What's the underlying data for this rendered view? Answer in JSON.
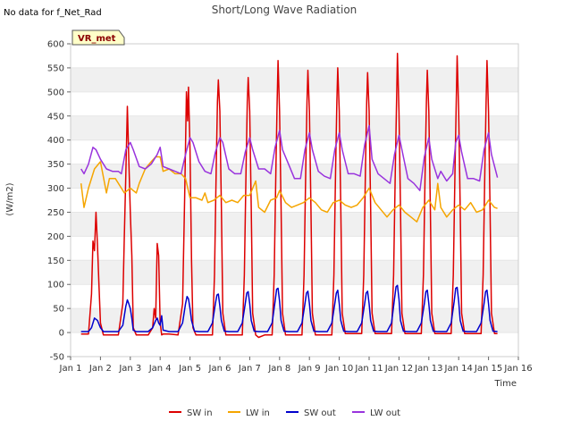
{
  "chart_data": {
    "type": "line",
    "title": "Short/Long Wave Radiation",
    "note": "No data for f_Net_Rad",
    "badge": "VR_met",
    "xlabel": "Time",
    "ylabel": "(W/m2)",
    "xlim": [
      1,
      16
    ],
    "ylim": [
      -50,
      600
    ],
    "x_ticks": [
      1,
      2,
      3,
      4,
      5,
      6,
      7,
      8,
      9,
      10,
      11,
      12,
      13,
      14,
      15,
      16
    ],
    "x_tick_labels": [
      "Jan 1",
      "Jan 2",
      "Jan 3",
      "Jan 4",
      "Jan 5",
      "Jan 6",
      "Jan 7",
      "Jan 8",
      "Jan 9",
      "Jan 10",
      "Jan 11",
      "Jan 12",
      "Jan 13",
      "Jan 14",
      "Jan 15",
      "Jan 16"
    ],
    "y_ticks": [
      -50,
      0,
      50,
      100,
      150,
      200,
      250,
      300,
      350,
      400,
      450,
      500,
      550,
      600
    ],
    "y_tick_labels": [
      "-50",
      "0",
      "50",
      "100",
      "150",
      "200",
      "250",
      "300",
      "350",
      "400",
      "450",
      "500",
      "550",
      "600"
    ],
    "grid": "horizontal bands",
    "legend_position": "bottom",
    "series": [
      {
        "name": "SW in",
        "color": "#dd0000",
        "x": [
          1.35,
          1.6,
          1.7,
          1.75,
          1.8,
          1.85,
          1.9,
          1.95,
          2.0,
          2.1,
          2.3,
          2.6,
          2.75,
          2.8,
          2.85,
          2.9,
          2.95,
          3.0,
          3.05,
          3.1,
          3.2,
          3.3,
          3.6,
          3.75,
          3.8,
          3.85,
          3.9,
          3.95,
          4.0,
          4.05,
          4.1,
          4.2,
          4.3,
          4.6,
          4.75,
          4.82,
          4.88,
          4.92,
          4.95,
          5.0,
          5.05,
          5.1,
          5.2,
          5.3,
          5.5,
          5.75,
          5.82,
          5.88,
          5.92,
          5.95,
          6.0,
          6.05,
          6.1,
          6.2,
          6.3,
          6.5,
          6.75,
          6.82,
          6.88,
          6.92,
          6.95,
          7.0,
          7.05,
          7.1,
          7.2,
          7.3,
          7.5,
          7.75,
          7.82,
          7.88,
          7.92,
          7.95,
          8.0,
          8.05,
          8.1,
          8.2,
          8.3,
          8.5,
          8.75,
          8.82,
          8.88,
          8.92,
          8.95,
          9.0,
          9.05,
          9.1,
          9.2,
          9.3,
          9.5,
          9.75,
          9.82,
          9.88,
          9.92,
          9.95,
          10.0,
          10.05,
          10.1,
          10.2,
          10.3,
          10.5,
          10.75,
          10.82,
          10.88,
          10.92,
          10.95,
          11.0,
          11.05,
          11.1,
          11.2,
          11.3,
          11.5,
          11.75,
          11.82,
          11.88,
          11.92,
          11.95,
          12.0,
          12.05,
          12.1,
          12.2,
          12.3,
          12.5,
          12.75,
          12.82,
          12.88,
          12.92,
          12.95,
          13.0,
          13.05,
          13.1,
          13.2,
          13.3,
          13.5,
          13.75,
          13.82,
          13.88,
          13.92,
          13.95,
          14.0,
          14.05,
          14.1,
          14.2,
          14.3,
          14.5,
          14.75,
          14.82,
          14.88,
          14.92,
          14.95,
          15.0,
          15.05,
          15.1,
          15.2,
          15.3
        ],
        "y": [
          -3,
          -3,
          80,
          190,
          170,
          250,
          180,
          100,
          20,
          -5,
          -5,
          -5,
          60,
          200,
          330,
          470,
          360,
          250,
          160,
          10,
          -5,
          -5,
          -5,
          10,
          50,
          30,
          185,
          160,
          20,
          -5,
          -3,
          -3,
          -3,
          -5,
          60,
          280,
          500,
          440,
          510,
          380,
          150,
          10,
          -5,
          -5,
          -5,
          -5,
          120,
          350,
          480,
          525,
          460,
          260,
          40,
          -5,
          -5,
          -5,
          -5,
          120,
          350,
          480,
          530,
          460,
          260,
          40,
          -5,
          -10,
          -5,
          -5,
          120,
          350,
          480,
          565,
          460,
          260,
          40,
          -5,
          -5,
          -5,
          -5,
          120,
          350,
          480,
          545,
          460,
          260,
          40,
          -5,
          -5,
          -5,
          -5,
          120,
          350,
          480,
          550,
          460,
          260,
          40,
          -2,
          -2,
          -2,
          -2,
          120,
          350,
          480,
          540,
          460,
          260,
          40,
          -2,
          -2,
          -2,
          -2,
          120,
          350,
          480,
          580,
          460,
          260,
          40,
          -2,
          -2,
          -2,
          -2,
          120,
          350,
          480,
          545,
          460,
          260,
          40,
          -2,
          -2,
          -2,
          -2,
          120,
          350,
          480,
          575,
          460,
          260,
          40,
          -2,
          -2,
          -2,
          -2,
          120,
          350,
          480,
          565,
          460,
          260,
          40,
          -2,
          -2
        ]
      },
      {
        "name": "LW in",
        "color": "#f5a500",
        "x": [
          1.35,
          1.45,
          1.6,
          1.8,
          2.0,
          2.2,
          2.3,
          2.5,
          2.7,
          2.8,
          3.0,
          3.2,
          3.3,
          3.5,
          3.7,
          3.85,
          4.0,
          4.1,
          4.3,
          4.5,
          4.7,
          4.85,
          5.0,
          5.2,
          5.4,
          5.5,
          5.6,
          5.8,
          6.0,
          6.2,
          6.4,
          6.6,
          6.8,
          7.0,
          7.2,
          7.3,
          7.5,
          7.7,
          7.9,
          8.0,
          8.2,
          8.4,
          8.6,
          8.8,
          9.0,
          9.2,
          9.4,
          9.6,
          9.8,
          10.0,
          10.2,
          10.4,
          10.6,
          10.8,
          11.0,
          11.2,
          11.4,
          11.6,
          11.8,
          12.0,
          12.2,
          12.4,
          12.6,
          12.8,
          13.0,
          13.2,
          13.3,
          13.4,
          13.6,
          13.8,
          14.0,
          14.2,
          14.4,
          14.6,
          14.8,
          15.0,
          15.2,
          15.3
        ],
        "y": [
          310,
          260,
          300,
          340,
          355,
          290,
          320,
          320,
          300,
          290,
          300,
          290,
          310,
          340,
          355,
          365,
          365,
          335,
          340,
          330,
          330,
          320,
          280,
          280,
          275,
          290,
          270,
          275,
          285,
          270,
          275,
          270,
          285,
          285,
          315,
          260,
          250,
          275,
          280,
          295,
          270,
          260,
          265,
          270,
          280,
          270,
          255,
          250,
          270,
          275,
          265,
          260,
          265,
          280,
          300,
          270,
          255,
          240,
          255,
          265,
          250,
          240,
          230,
          260,
          275,
          255,
          310,
          260,
          240,
          255,
          265,
          255,
          270,
          250,
          255,
          275,
          260,
          258
        ]
      },
      {
        "name": "SW out",
        "color": "#0000cc",
        "x": [
          1.35,
          1.6,
          1.7,
          1.8,
          1.9,
          2.0,
          2.1,
          2.3,
          2.6,
          2.75,
          2.85,
          2.9,
          2.95,
          3.0,
          3.05,
          3.1,
          3.2,
          3.3,
          3.6,
          3.75,
          3.85,
          3.9,
          3.95,
          4.0,
          4.05,
          4.1,
          4.3,
          4.6,
          4.75,
          4.85,
          4.9,
          4.95,
          5.0,
          5.05,
          5.15,
          5.3,
          5.6,
          5.75,
          5.85,
          5.9,
          5.95,
          6.0,
          6.05,
          6.15,
          6.3,
          6.6,
          6.75,
          6.85,
          6.9,
          6.95,
          7.0,
          7.05,
          7.15,
          7.3,
          7.6,
          7.75,
          7.85,
          7.9,
          7.95,
          8.0,
          8.05,
          8.15,
          8.3,
          8.6,
          8.75,
          8.85,
          8.9,
          8.95,
          9.0,
          9.05,
          9.15,
          9.3,
          9.6,
          9.75,
          9.85,
          9.9,
          9.95,
          10.0,
          10.05,
          10.15,
          10.3,
          10.6,
          10.75,
          10.85,
          10.9,
          10.95,
          11.0,
          11.05,
          11.15,
          11.3,
          11.6,
          11.75,
          11.85,
          11.9,
          11.95,
          12.0,
          12.05,
          12.15,
          12.3,
          12.6,
          12.75,
          12.85,
          12.9,
          12.95,
          13.0,
          13.05,
          13.15,
          13.3,
          13.6,
          13.75,
          13.85,
          13.9,
          13.95,
          14.0,
          14.05,
          14.15,
          14.3,
          14.6,
          14.75,
          14.85,
          14.9,
          14.95,
          15.0,
          15.05,
          15.15,
          15.3
        ],
        "y": [
          2,
          2,
          10,
          30,
          25,
          10,
          2,
          2,
          2,
          15,
          55,
          68,
          60,
          50,
          30,
          5,
          2,
          2,
          2,
          10,
          25,
          30,
          20,
          15,
          35,
          5,
          2,
          2,
          20,
          60,
          75,
          70,
          50,
          25,
          3,
          2,
          2,
          20,
          60,
          78,
          80,
          55,
          25,
          3,
          2,
          2,
          20,
          60,
          82,
          85,
          60,
          25,
          3,
          2,
          2,
          20,
          65,
          90,
          92,
          65,
          25,
          3,
          2,
          2,
          20,
          60,
          82,
          86,
          60,
          25,
          3,
          2,
          2,
          20,
          60,
          82,
          88,
          60,
          25,
          3,
          2,
          2,
          20,
          60,
          82,
          86,
          60,
          25,
          3,
          2,
          2,
          20,
          70,
          95,
          98,
          70,
          25,
          3,
          2,
          2,
          20,
          60,
          85,
          88,
          60,
          25,
          3,
          2,
          2,
          20,
          65,
          92,
          94,
          65,
          25,
          3,
          2,
          2,
          20,
          60,
          85,
          88,
          60,
          25,
          3,
          2
        ]
      },
      {
        "name": "LW out",
        "color": "#9933dd",
        "x": [
          1.35,
          1.45,
          1.6,
          1.75,
          1.85,
          2.0,
          2.2,
          2.4,
          2.6,
          2.7,
          2.85,
          3.0,
          3.1,
          3.3,
          3.5,
          3.7,
          3.9,
          4.0,
          4.1,
          4.3,
          4.5,
          4.7,
          4.85,
          5.0,
          5.1,
          5.3,
          5.5,
          5.7,
          5.85,
          6.0,
          6.1,
          6.3,
          6.5,
          6.7,
          6.85,
          7.0,
          7.1,
          7.3,
          7.5,
          7.7,
          7.85,
          8.0,
          8.1,
          8.3,
          8.5,
          8.7,
          8.85,
          9.0,
          9.1,
          9.3,
          9.5,
          9.7,
          9.85,
          10.0,
          10.1,
          10.3,
          10.5,
          10.7,
          10.85,
          11.0,
          11.1,
          11.3,
          11.5,
          11.7,
          11.85,
          12.0,
          12.1,
          12.3,
          12.5,
          12.7,
          12.85,
          13.0,
          13.1,
          13.3,
          13.4,
          13.6,
          13.8,
          13.9,
          14.0,
          14.1,
          14.3,
          14.5,
          14.7,
          14.85,
          15.0,
          15.1,
          15.3
        ],
        "y": [
          340,
          330,
          350,
          385,
          380,
          360,
          340,
          335,
          335,
          330,
          380,
          395,
          380,
          345,
          340,
          350,
          370,
          385,
          345,
          340,
          335,
          330,
          370,
          405,
          395,
          355,
          335,
          330,
          375,
          405,
          395,
          340,
          330,
          330,
          375,
          405,
          380,
          340,
          340,
          330,
          385,
          420,
          380,
          350,
          320,
          320,
          380,
          415,
          380,
          335,
          325,
          320,
          380,
          415,
          380,
          330,
          330,
          325,
          390,
          430,
          360,
          330,
          320,
          310,
          370,
          410,
          380,
          320,
          310,
          295,
          365,
          405,
          360,
          320,
          335,
          315,
          330,
          395,
          410,
          375,
          320,
          320,
          315,
          380,
          415,
          370,
          322
        ]
      }
    ]
  }
}
